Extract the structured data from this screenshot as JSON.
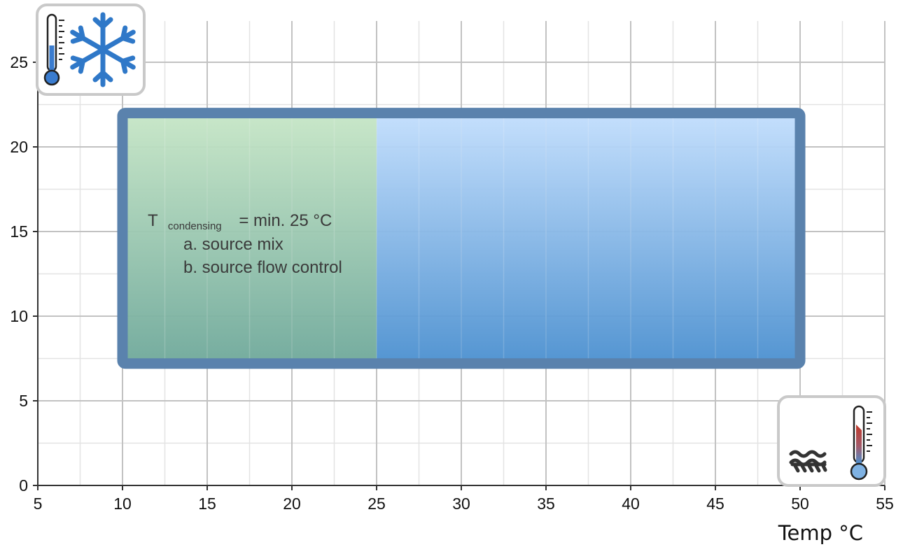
{
  "chart_data": {
    "type": "area",
    "xlabel": "Temp °C",
    "ylabel": "",
    "xlim": [
      5,
      55
    ],
    "ylim": [
      0,
      27
    ],
    "xticks": [
      5,
      10,
      15,
      20,
      25,
      30,
      35,
      40,
      45,
      50,
      55
    ],
    "yticks": [
      0,
      5,
      10,
      15,
      20,
      25
    ],
    "grid": true,
    "regions": [
      {
        "x": [
          10,
          25
        ],
        "y": [
          7.2,
          22
        ],
        "color": "#a9d3a9"
      },
      {
        "x": [
          25,
          50
        ],
        "y": [
          7.2,
          22
        ],
        "color": "#7fb2e3"
      }
    ],
    "outline": {
      "x": [
        10,
        50
      ],
      "y": [
        7.2,
        22
      ],
      "color": "#5a82ad"
    },
    "annotation": {
      "main": "T",
      "subscript": "condensing",
      "value": "= min. 25 °C",
      "lines": [
        "a. source mix",
        "b. source flow control"
      ]
    },
    "icons": [
      "cooling-icon",
      "heating-icon"
    ]
  }
}
